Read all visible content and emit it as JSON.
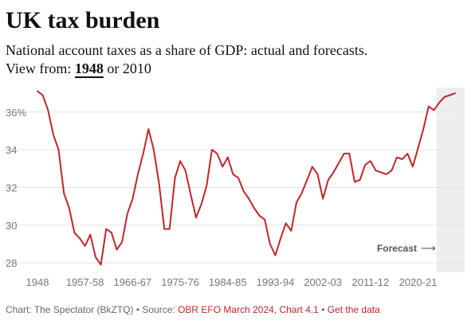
{
  "title": "UK tax burden",
  "subtitle": "National account taxes as a share of GDP: actual and forecasts.",
  "view_from": {
    "label": "View from:",
    "active": "1948",
    "connector": "or",
    "other": "2010"
  },
  "footer": {
    "credit": "Chart: The Spectator (BkZTQ)",
    "separator": "•",
    "source_label": "Source:",
    "source_link": "OBR EFO March 2024, Chart 4.1",
    "data_link": "Get the data"
  },
  "colors": {
    "line": "#c0262a",
    "forecast_band": "#eeeeee",
    "grid": "#e4e4e4",
    "axis_text": "#777777",
    "link": "#c0262a"
  },
  "chart_data": {
    "type": "line",
    "title": "UK tax burden",
    "xlabel": "",
    "ylabel": "",
    "ylim": [
      27.5,
      37.3
    ],
    "grid": true,
    "y_ticks": [
      {
        "value": 28,
        "label": "28"
      },
      {
        "value": 30,
        "label": "30"
      },
      {
        "value": 32,
        "label": "32"
      },
      {
        "value": 34,
        "label": "34"
      },
      {
        "value": 36,
        "label": "36%"
      }
    ],
    "x_ticks": [
      "1948",
      "1957-58",
      "1966-67",
      "1975-76",
      "1984-85",
      "1993-94",
      "2002-03",
      "2011-12",
      "2020-21"
    ],
    "annotation": {
      "text": "Forecast",
      "arrow": "⟶"
    },
    "forecast_start_index": 76,
    "series": [
      {
        "values": [
          37.1,
          36.9,
          36.1,
          34.8,
          34.0,
          31.7,
          30.9,
          29.6,
          29.3,
          28.9,
          29.5,
          28.3,
          27.9,
          29.8,
          29.6,
          28.7,
          29.1,
          30.6,
          31.4,
          32.7,
          33.8,
          35.1,
          34.0,
          32.2,
          29.8,
          29.8,
          32.5,
          33.4,
          32.9,
          31.6,
          30.4,
          31.1,
          32.1,
          34.0,
          33.8,
          33.1,
          33.6,
          32.7,
          32.5,
          31.8,
          31.4,
          30.9,
          30.5,
          30.3,
          29.0,
          28.4,
          29.3,
          30.1,
          29.7,
          31.2,
          31.7,
          32.4,
          33.1,
          32.7,
          31.4,
          32.4,
          32.8,
          33.3,
          33.8,
          33.8,
          32.3,
          32.4,
          33.2,
          33.4,
          32.9,
          32.8,
          32.7,
          32.9,
          33.6,
          33.5,
          33.8,
          33.1,
          34.1,
          35.1,
          36.3,
          36.1,
          36.5,
          36.8,
          36.9,
          37.0
        ]
      }
    ]
  }
}
